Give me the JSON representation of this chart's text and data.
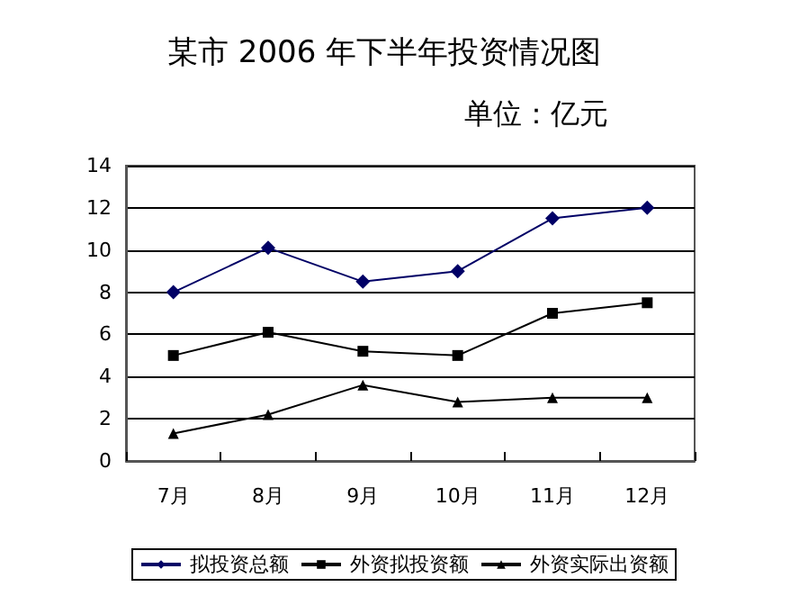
{
  "chart_data": {
    "type": "line",
    "title": "某市 2006 年下半年投资情况图",
    "subtitle": "单位：亿元",
    "categories": [
      "7月",
      "8月",
      "9月",
      "10月",
      "11月",
      "12月"
    ],
    "series": [
      {
        "name": "拟投资总额",
        "color": "#000066",
        "marker": "diamond",
        "values": [
          8,
          10.1,
          8.5,
          9,
          11.5,
          12
        ]
      },
      {
        "name": "外资拟投资额",
        "color": "#000000",
        "marker": "square",
        "values": [
          5,
          6.1,
          5.2,
          5,
          7,
          7.5
        ]
      },
      {
        "name": "外资实际出资额",
        "color": "#000000",
        "marker": "triangle",
        "values": [
          1.3,
          2.2,
          3.6,
          2.8,
          3,
          3
        ]
      }
    ],
    "ylim": [
      0,
      14
    ],
    "yticks": [
      0,
      2,
      4,
      6,
      8,
      10,
      12,
      14
    ],
    "grid": "y",
    "legend": "bottom",
    "line_style": "solid"
  }
}
